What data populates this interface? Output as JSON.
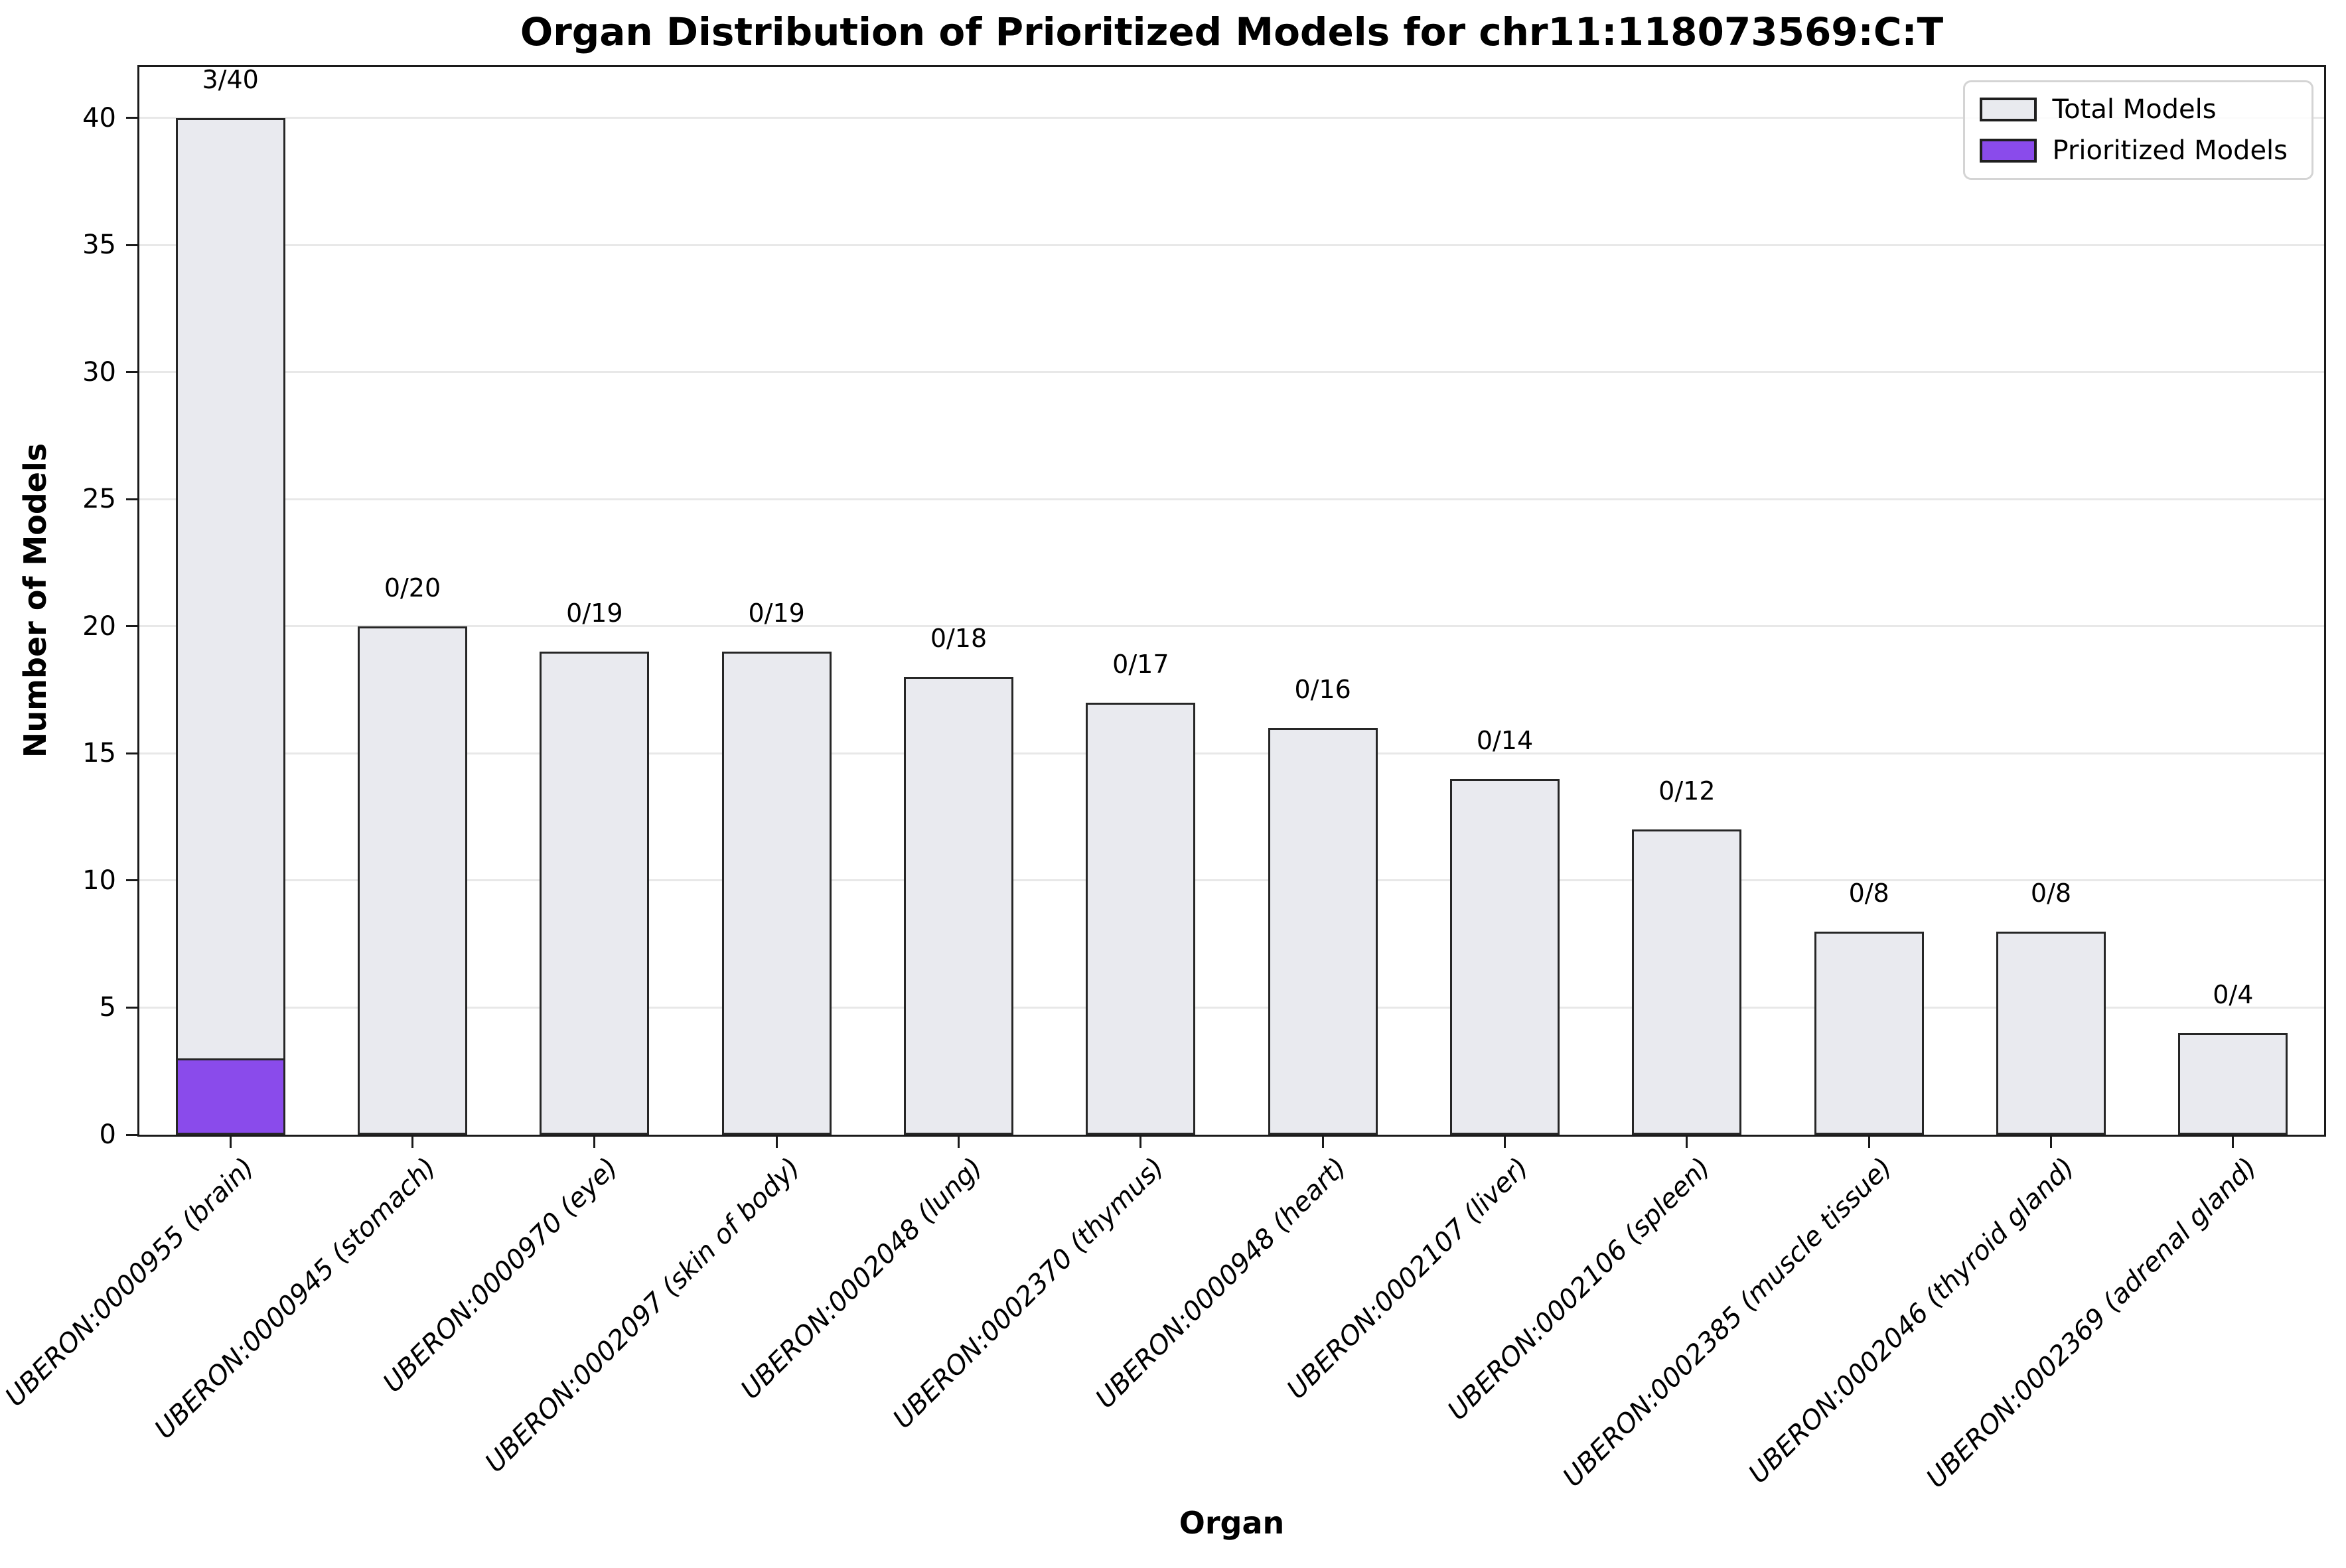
{
  "chart_data": {
    "type": "bar",
    "title": "Organ Distribution of Prioritized Models for chr11:118073569:C:T",
    "xlabel": "Organ",
    "ylabel": "Number of Models",
    "ylim": [
      0,
      42
    ],
    "yticks": [
      0,
      5,
      10,
      15,
      20,
      25,
      30,
      35,
      40
    ],
    "grid": "horizontal",
    "legend_position": "upper right",
    "categories": [
      "UBERON:0000955 (brain)",
      "UBERON:0000945 (stomach)",
      "UBERON:0000970 (eye)",
      "UBERON:0002097 (skin of body)",
      "UBERON:0002048 (lung)",
      "UBERON:0002370 (thymus)",
      "UBERON:0000948 (heart)",
      "UBERON:0002107 (liver)",
      "UBERON:0002106 (spleen)",
      "UBERON:0002385 (muscle tissue)",
      "UBERON:0002046 (thyroid gland)",
      "UBERON:0002369 (adrenal gland)"
    ],
    "series": [
      {
        "name": "Total Models",
        "color": "#e9eaef",
        "values": [
          40,
          20,
          19,
          19,
          18,
          17,
          16,
          14,
          12,
          8,
          8,
          4
        ]
      },
      {
        "name": "Prioritized Models",
        "color": "#8a4beb",
        "values": [
          3,
          0,
          0,
          0,
          0,
          0,
          0,
          0,
          0,
          0,
          0,
          0
        ]
      }
    ],
    "annotations": [
      "3/40",
      "0/20",
      "0/19",
      "0/19",
      "0/18",
      "0/17",
      "0/16",
      "0/14",
      "0/12",
      "0/8",
      "0/8",
      "0/4"
    ]
  },
  "colors": {
    "bar_edge": "#262626",
    "grid": "#e8e8e8",
    "spine": "#1a1a1a",
    "legend_border": "#d4d4d4"
  }
}
